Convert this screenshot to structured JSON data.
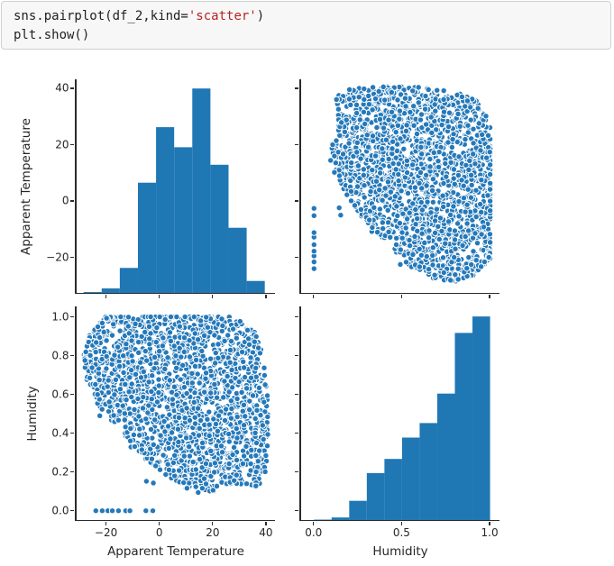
{
  "app": {
    "context": "jupyter notebook code cell with seaborn pairplot output"
  },
  "code_cell": {
    "lines": [
      {
        "segments": [
          {
            "text": "sns.pairplot(df_2,kind=",
            "role": "default"
          },
          {
            "text": "'scatter'",
            "role": "string"
          },
          {
            "text": ")",
            "role": "default"
          }
        ]
      },
      {
        "segments": [
          {
            "text": "plt.show()",
            "role": "default"
          }
        ]
      }
    ]
  },
  "colors": {
    "histogram_bar": "#1f77b4",
    "scatter_dot": "#2579ba",
    "scatter_dot_edge": "#ffffff",
    "axis_line": "#2b2b2b",
    "tick_text": "#262626",
    "code_default": "#1f1f1f",
    "code_string": "#ba2121",
    "cell_background": "#f7f7f7",
    "cell_border": "#d0d0d0",
    "figure_background": "#ffffff"
  },
  "chart_data": [
    {
      "id": "apparent-temperature-histogram",
      "type": "bar",
      "grid_position": "top-left",
      "variable": "Apparent Temperature",
      "ylabel": "Apparent Temperature",
      "xlabel": "",
      "xlim": [
        -31.2,
        43.4
      ],
      "ylim": [
        -32.6,
        43.2
      ],
      "yticks": [
        {
          "v": 40,
          "label": "40"
        },
        {
          "v": 20,
          "label": "20"
        },
        {
          "v": 0,
          "label": "0"
        },
        {
          "v": -20,
          "label": "−20"
        }
      ],
      "xticks": [
        {
          "v": -20,
          "label": ""
        },
        {
          "v": 0,
          "label": ""
        },
        {
          "v": 20,
          "label": ""
        },
        {
          "v": 40,
          "label": ""
        }
      ],
      "bin_edges": [
        -28.6,
        -21.8,
        -15.0,
        -8.2,
        -1.4,
        5.4,
        12.2,
        19.0,
        25.8,
        32.6,
        39.4
      ],
      "heights_frac_of_panel": [
        0.004,
        0.021,
        0.117,
        0.516,
        0.776,
        0.682,
        0.957,
        0.6,
        0.305,
        0.056
      ]
    },
    {
      "id": "humidity-vs-apparent-temperature-scatter",
      "type": "scatter",
      "grid_position": "top-right",
      "x_var": "Humidity",
      "y_var": "Apparent Temperature",
      "xlabel": "",
      "ylabel": "",
      "xlim": [
        -0.073,
        1.056
      ],
      "ylim": [
        -32.6,
        43.2
      ],
      "xticks": [
        {
          "v": 0,
          "label": ""
        },
        {
          "v": 0.5,
          "label": ""
        },
        {
          "v": 1,
          "label": ""
        }
      ],
      "yticks": [
        {
          "v": 40,
          "label": ""
        },
        {
          "v": 20,
          "label": ""
        },
        {
          "v": 0,
          "label": ""
        },
        {
          "v": -20,
          "label": ""
        }
      ],
      "points_ref": "scatter_cloud"
    },
    {
      "id": "apparent-temperature-vs-humidity-scatter",
      "type": "scatter",
      "grid_position": "bottom-left",
      "x_var": "Apparent Temperature",
      "y_var": "Humidity",
      "xlabel": "Apparent Temperature",
      "ylabel": "Humidity",
      "xlim": [
        -31.2,
        43.4
      ],
      "ylim": [
        -0.048,
        1.054
      ],
      "xticks": [
        {
          "v": -20,
          "label": "−20"
        },
        {
          "v": 0,
          "label": "0"
        },
        {
          "v": 20,
          "label": "20"
        },
        {
          "v": 40,
          "label": "40"
        }
      ],
      "yticks": [
        {
          "v": 1.0,
          "label": "1.0"
        },
        {
          "v": 0.8,
          "label": "0.8"
        },
        {
          "v": 0.6,
          "label": "0.6"
        },
        {
          "v": 0.4,
          "label": "0.4"
        },
        {
          "v": 0.2,
          "label": "0.2"
        },
        {
          "v": 0.0,
          "label": "0.0"
        }
      ],
      "points_ref": "scatter_cloud"
    },
    {
      "id": "humidity-histogram",
      "type": "bar",
      "grid_position": "bottom-right",
      "variable": "Humidity",
      "xlabel": "Humidity",
      "ylabel": "",
      "xlim": [
        -0.073,
        1.056
      ],
      "ylim": [
        -0.048,
        1.054
      ],
      "xticks": [
        {
          "v": 0,
          "label": "0.0"
        },
        {
          "v": 0.5,
          "label": "0.5"
        },
        {
          "v": 1,
          "label": "1.0"
        }
      ],
      "yticks": [
        {
          "v": 1.0,
          "label": ""
        },
        {
          "v": 0.8,
          "label": ""
        },
        {
          "v": 0.6,
          "label": ""
        },
        {
          "v": 0.4,
          "label": ""
        },
        {
          "v": 0.2,
          "label": ""
        },
        {
          "v": 0.0,
          "label": ""
        }
      ],
      "bin_edges": [
        0.0,
        0.1,
        0.2,
        0.3,
        0.4,
        0.5,
        0.6,
        0.7,
        0.8,
        0.9,
        1.0
      ],
      "heights_frac_of_panel": [
        0.002,
        0.012,
        0.09,
        0.22,
        0.286,
        0.386,
        0.454,
        0.592,
        0.876,
        0.953
      ]
    }
  ],
  "scatter_cloud": {
    "description": "dense cloud of (Apparent Temperature, Humidity) observations shown in both off-diagonal panels",
    "point_count": 2100,
    "boundary_t": [
      -28.5,
      -26,
      -23,
      -19,
      -15,
      -11,
      -7,
      -3,
      2,
      7,
      12,
      17,
      22,
      26,
      30,
      34,
      37,
      39,
      40.8
    ],
    "humidity_min": [
      0.74,
      0.64,
      0.56,
      0.5,
      0.44,
      0.35,
      0.3,
      0.26,
      0.21,
      0.16,
      0.12,
      0.11,
      0.13,
      0.15,
      0.16,
      0.15,
      0.14,
      0.17,
      0.3
    ],
    "humidity_max": [
      0.8,
      0.9,
      0.96,
      0.995,
      1.0,
      1.0,
      1.0,
      1.0,
      1.0,
      1.0,
      1.0,
      1.0,
      1.0,
      0.99,
      0.97,
      0.92,
      0.88,
      0.75,
      0.55
    ],
    "outliers": [
      [
        -24,
        0.0
      ],
      [
        -21.6,
        0.0
      ],
      [
        -19.5,
        0.0
      ],
      [
        -17.8,
        0.0
      ],
      [
        -15.5,
        0.0
      ],
      [
        -12.8,
        0.0
      ],
      [
        -11.2,
        0.0
      ],
      [
        -5.2,
        0.0
      ],
      [
        -2.6,
        0.0
      ],
      [
        -5.0,
        0.152
      ],
      [
        -2.4,
        0.143
      ],
      [
        -22.5,
        0.49
      ]
    ]
  }
}
